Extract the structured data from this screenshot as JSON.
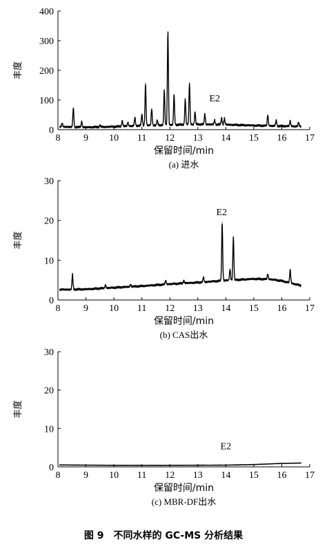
{
  "figure_title": "图 9　不同水样的 GC-MS 分析结果",
  "chart_data": [
    {
      "type": "line",
      "subtitle": "(a) 进水",
      "xlabel": "保留时间/min",
      "ylabel": "丰度",
      "xlim": [
        8,
        17
      ],
      "ylim": [
        0,
        400
      ],
      "xticks": [
        8,
        9,
        10,
        11,
        12,
        13,
        14,
        15,
        16,
        17
      ],
      "yticks": [
        0,
        100,
        200,
        300,
        400
      ],
      "annotation": {
        "text": "E2",
        "x": 13.6,
        "y": 95
      },
      "baseline": [
        [
          8.05,
          10
        ],
        [
          9.0,
          8
        ],
        [
          10.0,
          10
        ],
        [
          11.0,
          14
        ],
        [
          12.0,
          16
        ],
        [
          13.0,
          18
        ],
        [
          14.0,
          17
        ],
        [
          15.0,
          14
        ],
        [
          16.0,
          12
        ],
        [
          16.7,
          11
        ]
      ],
      "peaks": [
        {
          "x": 8.15,
          "y": 22
        },
        {
          "x": 8.55,
          "y": 73
        },
        {
          "x": 8.85,
          "y": 28
        },
        {
          "x": 9.5,
          "y": 15
        },
        {
          "x": 10.3,
          "y": 30
        },
        {
          "x": 10.5,
          "y": 25
        },
        {
          "x": 10.75,
          "y": 42
        },
        {
          "x": 11.0,
          "y": 52
        },
        {
          "x": 11.13,
          "y": 157
        },
        {
          "x": 11.35,
          "y": 70
        },
        {
          "x": 11.55,
          "y": 32
        },
        {
          "x": 11.8,
          "y": 135
        },
        {
          "x": 11.93,
          "y": 330
        },
        {
          "x": 12.15,
          "y": 118
        },
        {
          "x": 12.55,
          "y": 105
        },
        {
          "x": 12.7,
          "y": 157
        },
        {
          "x": 12.9,
          "y": 60
        },
        {
          "x": 13.25,
          "y": 52
        },
        {
          "x": 13.6,
          "y": 33
        },
        {
          "x": 13.85,
          "y": 40
        },
        {
          "x": 13.95,
          "y": 38
        },
        {
          "x": 15.5,
          "y": 50
        },
        {
          "x": 15.8,
          "y": 32
        },
        {
          "x": 16.3,
          "y": 30
        },
        {
          "x": 16.6,
          "y": 25
        }
      ]
    },
    {
      "type": "line",
      "subtitle": "(b) CAS出水",
      "xlabel": "保留时间/min",
      "ylabel": "丰度",
      "xlim": [
        8,
        17
      ],
      "ylim": [
        0,
        30
      ],
      "xticks": [
        8,
        9,
        10,
        11,
        12,
        13,
        14,
        15,
        16,
        17
      ],
      "yticks": [
        0,
        10,
        20,
        30
      ],
      "annotation": {
        "text": "E2",
        "x": 13.85,
        "y": 21.3
      },
      "baseline": [
        [
          8.05,
          2.6
        ],
        [
          9.0,
          2.7
        ],
        [
          10.0,
          3.1
        ],
        [
          11.0,
          3.5
        ],
        [
          12.0,
          4.0
        ],
        [
          13.0,
          4.4
        ],
        [
          14.0,
          4.9
        ],
        [
          15.0,
          5.3
        ],
        [
          15.6,
          5.2
        ],
        [
          16.0,
          4.8
        ],
        [
          16.7,
          3.6
        ]
      ],
      "peaks": [
        {
          "x": 8.52,
          "y": 6.4
        },
        {
          "x": 9.7,
          "y": 3.8
        },
        {
          "x": 10.6,
          "y": 3.9
        },
        {
          "x": 11.85,
          "y": 4.9
        },
        {
          "x": 12.5,
          "y": 4.9
        },
        {
          "x": 13.2,
          "y": 5.8
        },
        {
          "x": 13.87,
          "y": 19.5
        },
        {
          "x": 14.15,
          "y": 7.8
        },
        {
          "x": 14.27,
          "y": 15.8
        },
        {
          "x": 15.5,
          "y": 6.5
        },
        {
          "x": 16.3,
          "y": 7.6
        }
      ]
    },
    {
      "type": "line",
      "subtitle": "(c) MBR-DF出水",
      "xlabel": "保留时间/min",
      "ylabel": "丰度",
      "xlim": [
        8,
        17
      ],
      "ylim": [
        0,
        30
      ],
      "xticks": [
        8,
        9,
        10,
        11,
        12,
        13,
        14,
        15,
        16,
        17
      ],
      "yticks": [
        0,
        10,
        20,
        30
      ],
      "annotation": {
        "text": "E2",
        "x": 14.0,
        "y": 4.6
      },
      "baseline": [
        [
          8.05,
          0.5
        ],
        [
          10.0,
          0.4
        ],
        [
          12.0,
          0.4
        ],
        [
          14.0,
          0.45
        ],
        [
          15.0,
          0.6
        ],
        [
          16.0,
          0.9
        ],
        [
          16.7,
          1.0
        ]
      ],
      "peaks": []
    }
  ]
}
